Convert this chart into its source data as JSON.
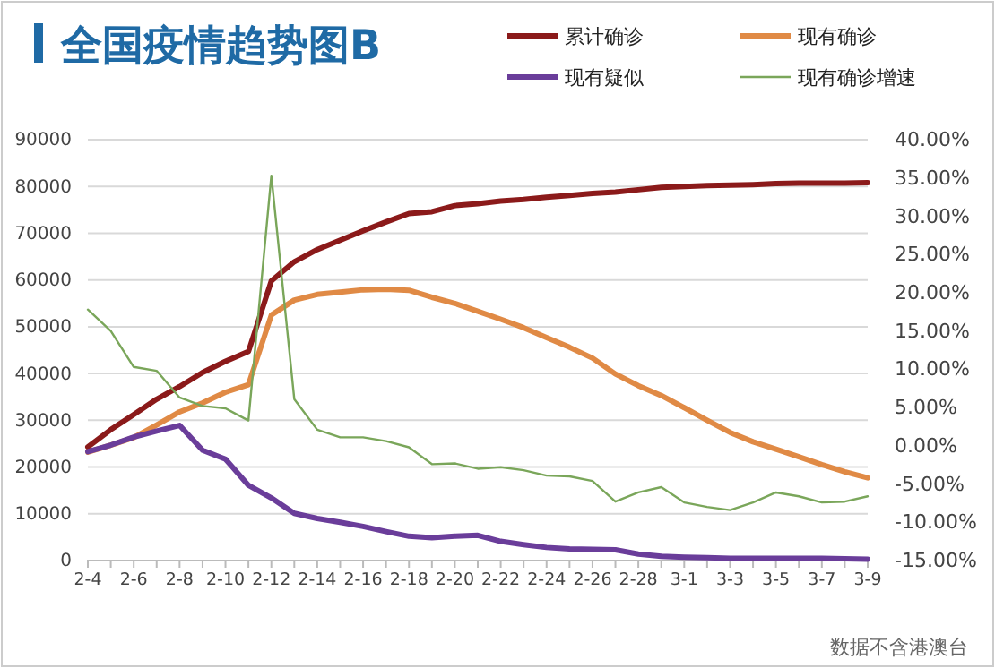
{
  "chart_data": {
    "type": "line",
    "title": "全国疫情趋势图B",
    "categories": [
      "2-4",
      null,
      "2-6",
      null,
      "2-8",
      null,
      "2-10",
      null,
      "2-12",
      null,
      "2-14",
      null,
      "2-16",
      null,
      "2-18",
      null,
      "2-20",
      null,
      "2-22",
      null,
      "2-24",
      null,
      "2-26",
      null,
      "2-28",
      null,
      "3-1",
      null,
      "3-3",
      null,
      "3-5",
      null,
      "3-7",
      null,
      "3-9"
    ],
    "series": [
      {
        "name": "累计确诊",
        "color": "#8b1a1a",
        "values": [
          24300,
          28000,
          31200,
          34500,
          37200,
          40200,
          42600,
          44700,
          59800,
          63900,
          66500,
          68500,
          70500,
          72400,
          74200,
          74600,
          75900,
          76300,
          76900,
          77200,
          77700,
          78100,
          78500,
          78800,
          79300,
          79800,
          80000,
          80200,
          80300,
          80400,
          80600,
          80700,
          80700,
          80700,
          80800
        ]
      },
      {
        "name": "现有确诊",
        "color": "#e08a45",
        "values": [
          23200,
          24700,
          26300,
          29000,
          31800,
          33700,
          36000,
          37600,
          52500,
          55700,
          56900,
          57400,
          57900,
          58000,
          57800,
          56300,
          55000,
          53300,
          51600,
          49800,
          47700,
          45600,
          43300,
          39900,
          37400,
          35300,
          32700,
          30000,
          27400,
          25400,
          23800,
          22200,
          20500,
          19000,
          17700
        ]
      },
      {
        "name": "现有疑似",
        "color": "#6a3d9a",
        "values": [
          23300,
          24700,
          26400,
          27700,
          28900,
          23600,
          21700,
          16100,
          13400,
          10100,
          9000,
          8200,
          7300,
          6200,
          5200,
          4900,
          5200,
          5400,
          4100,
          3400,
          2800,
          2500,
          2400,
          2300,
          1400,
          900,
          700,
          600,
          500,
          500,
          500,
          500,
          500,
          400,
          300
        ]
      },
      {
        "name": "现有确诊增速",
        "color": "#7aa65a",
        "axis": "y2",
        "values": [
          17.8,
          15.0,
          10.3,
          9.8,
          6.3,
          5.2,
          4.9,
          3.3,
          35.3,
          6.1,
          2.1,
          1.1,
          1.1,
          0.6,
          -0.2,
          -2.4,
          -2.3,
          -3.0,
          -2.8,
          -3.2,
          -3.9,
          -4.0,
          -4.6,
          -7.3,
          -6.1,
          -5.4,
          -7.4,
          -8.0,
          -8.4,
          -7.4,
          -6.1,
          -6.6,
          -7.4,
          -7.3,
          -6.6
        ]
      }
    ],
    "ylim": [
      0,
      90000
    ],
    "yticks": [
      0,
      10000,
      20000,
      30000,
      40000,
      50000,
      60000,
      70000,
      80000,
      90000
    ],
    "y2lim": [
      -15,
      40
    ],
    "y2ticks": [
      {
        "value": -15,
        "label": "-15.00%"
      },
      {
        "value": -10,
        "label": "-10.00%"
      },
      {
        "value": -5,
        "label": "-5.00%"
      },
      {
        "value": 0,
        "label": "0.00%"
      },
      {
        "value": 5,
        "label": "5.00%"
      },
      {
        "value": 10,
        "label": "10.00%"
      },
      {
        "value": 15,
        "label": "15.00%"
      },
      {
        "value": 20,
        "label": "20.00%"
      },
      {
        "value": 25,
        "label": "25.00%"
      },
      {
        "value": 30,
        "label": "30.00%"
      },
      {
        "value": 35,
        "label": "35.00%"
      },
      {
        "value": 40,
        "label": "40.00%"
      }
    ],
    "grid": "y",
    "legend": "top right",
    "marker": "none",
    "line_style": "solid",
    "annotations": [
      "数据不含港澳台"
    ]
  }
}
